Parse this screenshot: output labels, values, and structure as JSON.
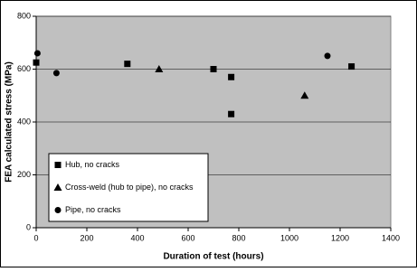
{
  "chart_data": {
    "type": "scatter",
    "x_label": "Duration of test (hours)",
    "y_label": "FEA calculated stress (MPa)",
    "xlim": [
      0,
      1400
    ],
    "xticks": [
      0,
      200,
      400,
      600,
      800,
      1000,
      1200,
      1400
    ],
    "ylim": [
      0,
      800
    ],
    "yticks": [
      0,
      200,
      400,
      600,
      800
    ],
    "grid": true,
    "legend_position": "lower-left",
    "series": [
      {
        "name": "Hub, no cracks",
        "color": "#000000",
        "marker": "square",
        "x": [
          0,
          360,
          700,
          770,
          770,
          1245
        ],
        "values": [
          625,
          620,
          600,
          570,
          430,
          610
        ]
      },
      {
        "name": "Cross-weld (hub to pipe), no cracks",
        "color": "#000000",
        "marker": "triangle",
        "x": [
          485,
          1060
        ],
        "values": [
          600,
          500
        ]
      },
      {
        "name": "Pipe, no cracks",
        "color": "#000000",
        "marker": "circle",
        "x": [
          5,
          80,
          1150
        ],
        "values": [
          660,
          585,
          650
        ]
      }
    ]
  }
}
